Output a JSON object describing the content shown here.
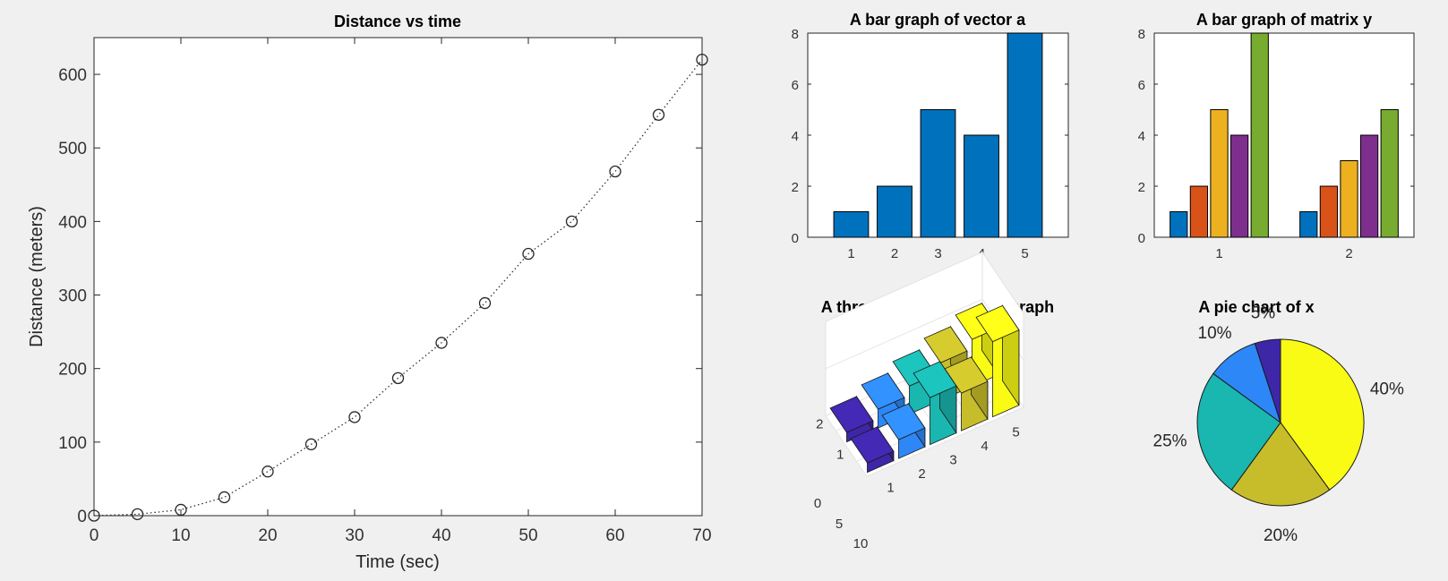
{
  "chart_data": [
    {
      "type": "scatter",
      "title": "Distance vs time",
      "xlabel": "Time (sec)",
      "ylabel": "Distance (meters)",
      "xlim": [
        0,
        70
      ],
      "ylim": [
        0,
        650
      ],
      "xticks": [
        0,
        10,
        20,
        30,
        40,
        50,
        60,
        70
      ],
      "yticks": [
        0,
        100,
        200,
        300,
        400,
        500,
        600
      ],
      "line_style": "dotted",
      "marker": "circle",
      "color": "#000000",
      "grid": false,
      "x": [
        0,
        5,
        10,
        15,
        20,
        25,
        30,
        35,
        40,
        45,
        50,
        55,
        60,
        65,
        70
      ],
      "y": [
        0,
        2,
        8,
        25,
        60,
        97,
        134,
        187,
        235,
        289,
        356,
        400,
        468,
        545,
        620
      ]
    },
    {
      "type": "bar",
      "title": "A bar graph of vector a",
      "categories": [
        "1",
        "2",
        "3",
        "4",
        "5"
      ],
      "values": [
        1,
        2,
        5,
        4,
        8
      ],
      "ylim": [
        0,
        8
      ],
      "yticks": [
        0,
        2,
        4,
        6,
        8
      ],
      "color": "#0072bd"
    },
    {
      "type": "bar",
      "title": "A bar graph of matrix y",
      "categories": [
        "1",
        "2"
      ],
      "ylim": [
        0,
        8
      ],
      "yticks": [
        0,
        2,
        4,
        6,
        8
      ],
      "colors": [
        "#0072bd",
        "#d95319",
        "#edb120",
        "#7e2f8e",
        "#77ac30"
      ],
      "series": [
        {
          "values": [
            1,
            1
          ]
        },
        {
          "values": [
            2,
            2
          ]
        },
        {
          "values": [
            5,
            3
          ]
        },
        {
          "values": [
            4,
            4
          ]
        },
        {
          "values": [
            8,
            5
          ]
        }
      ]
    },
    {
      "type": "bar",
      "title": "A three-dimensional bar graph",
      "x_ticks": [
        "1",
        "2",
        "3",
        "4",
        "5"
      ],
      "y_ticks": [
        "1",
        "2"
      ],
      "z_ticks": [
        "0",
        "5",
        "10"
      ],
      "colors": [
        "#3e26a8",
        "#2e87f7",
        "#1ab6b0",
        "#c7bd2a",
        "#f9fb15"
      ],
      "rows": [
        {
          "y": "1",
          "values": [
            1,
            2,
            5,
            4,
            8
          ]
        },
        {
          "y": "2",
          "values": [
            1,
            2,
            3,
            4,
            5
          ]
        }
      ]
    },
    {
      "type": "pie",
      "title": "A pie chart of x",
      "labels": [
        "40%",
        "20%",
        "25%",
        "10%",
        "5%"
      ],
      "values": [
        40,
        20,
        25,
        10,
        5
      ],
      "colors": [
        "#f9fb15",
        "#c7bd2a",
        "#1ab6b0",
        "#2e87f7",
        "#3e26a8"
      ]
    }
  ]
}
